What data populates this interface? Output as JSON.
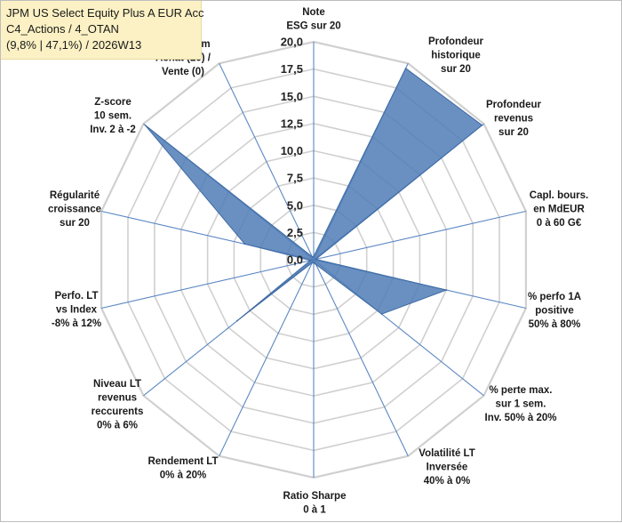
{
  "header": {
    "line1": "JPM US Select Equity Plus A EUR Acc",
    "line2": "C4_Actions / 4_OTAN",
    "line3": "(9,8% | 47,1%) / 2026W13"
  },
  "chart_data": {
    "type": "radar",
    "rlim": [
      0,
      20
    ],
    "ticks": [
      "0,0",
      "2,5",
      "5,0",
      "7,5",
      "10,0",
      "12,5",
      "15,0",
      "17,5",
      "20,0"
    ],
    "grid": true,
    "fill_color": "#4f7cb6",
    "axes": [
      {
        "label": [
          "Note",
          "ESG sur 20"
        ],
        "value": 0.3
      },
      {
        "label": [
          "Profondeur",
          "historique",
          "sur 20"
        ],
        "value": 19.5
      },
      {
        "label": [
          "Profondeur",
          "revenus",
          "sur 20"
        ],
        "value": 19.8
      },
      {
        "label": [
          "Capl. bours.",
          "en MdEUR",
          "0 à 60 G€"
        ],
        "value": 0.2
      },
      {
        "label": [
          "% perfo 1A",
          "positive",
          "50% à 80%"
        ],
        "value": 12.5
      },
      {
        "label": [
          "% perte max.",
          "sur 1 sem.",
          "Inv. 50% à 20%"
        ],
        "value": 8.0
      },
      {
        "label": [
          "Volatilité LT",
          "Inversée",
          "40% à 0%"
        ],
        "value": 0.5
      },
      {
        "label": [
          "Ratio Sharpe",
          "0 à 1"
        ],
        "value": 0.3
      },
      {
        "label": [
          "Rendement LT",
          "0% à 20%"
        ],
        "value": 0.3
      },
      {
        "label": [
          "Niveau LT",
          "revenus",
          "reccurents",
          "0% à 6%"
        ],
        "value": 9.0
      },
      {
        "label": [
          "Perfo. LT",
          "vs Index",
          "-8% à 12%"
        ],
        "value": 0.3
      },
      {
        "label": [
          "Régularité",
          "croissance",
          "sur 20"
        ],
        "value": 6.5
      },
      {
        "label": [
          "Z-score",
          "10 sem.",
          "Inv. 2 à -2"
        ],
        "value": 19.8
      },
      {
        "label": [
          "Momentum",
          "Achat (20) /",
          "Vente (0)"
        ],
        "value": 0.3
      }
    ]
  }
}
